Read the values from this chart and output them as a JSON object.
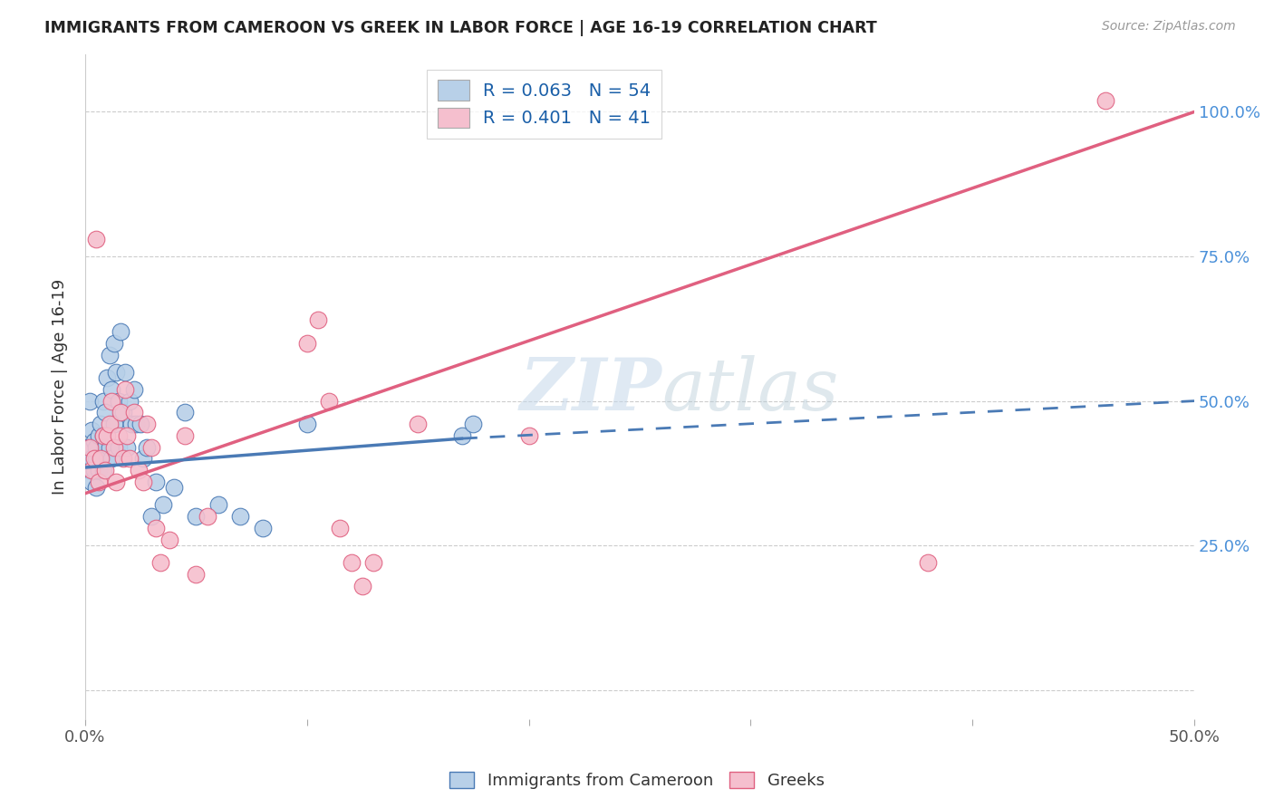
{
  "title": "IMMIGRANTS FROM CAMEROON VS GREEK IN LABOR FORCE | AGE 16-19 CORRELATION CHART",
  "source": "Source: ZipAtlas.com",
  "ylabel": "In Labor Force | Age 16-19",
  "xlim": [
    0.0,
    0.5
  ],
  "ylim": [
    -0.05,
    1.1
  ],
  "yticks": [
    0.0,
    0.25,
    0.5,
    0.75,
    1.0
  ],
  "ytick_labels": [
    "",
    "25.0%",
    "50.0%",
    "75.0%",
    "100.0%"
  ],
  "xticks": [
    0.0,
    0.1,
    0.2,
    0.3,
    0.4,
    0.5
  ],
  "xtick_labels": [
    "0.0%",
    "",
    "",
    "",
    "",
    "50.0%"
  ],
  "cameroon_color": "#b8d0e8",
  "greek_color": "#f5bfce",
  "cameroon_line_color": "#4a7ab5",
  "greek_line_color": "#e06080",
  "watermark_zip": "ZIP",
  "watermark_atlas": "atlas",
  "greek_line_x0": 0.0,
  "greek_line_y0": 0.34,
  "greek_line_x1": 0.5,
  "greek_line_y1": 1.0,
  "cam_line_solid_x0": 0.0,
  "cam_line_solid_y0": 0.385,
  "cam_line_solid_x1": 0.17,
  "cam_line_solid_y1": 0.435,
  "cam_line_dash_x0": 0.17,
  "cam_line_dash_y0": 0.435,
  "cam_line_dash_x1": 0.5,
  "cam_line_dash_y1": 0.5,
  "cameroon_x": [
    0.001,
    0.002,
    0.002,
    0.003,
    0.003,
    0.003,
    0.004,
    0.004,
    0.005,
    0.005,
    0.005,
    0.006,
    0.006,
    0.007,
    0.007,
    0.008,
    0.008,
    0.008,
    0.009,
    0.009,
    0.01,
    0.01,
    0.011,
    0.011,
    0.012,
    0.012,
    0.013,
    0.013,
    0.014,
    0.015,
    0.015,
    0.016,
    0.017,
    0.018,
    0.019,
    0.02,
    0.021,
    0.022,
    0.023,
    0.025,
    0.026,
    0.028,
    0.03,
    0.032,
    0.035,
    0.04,
    0.045,
    0.05,
    0.06,
    0.07,
    0.08,
    0.1,
    0.17,
    0.175
  ],
  "cameroon_y": [
    0.42,
    0.5,
    0.38,
    0.45,
    0.4,
    0.36,
    0.43,
    0.38,
    0.42,
    0.4,
    0.35,
    0.44,
    0.38,
    0.46,
    0.4,
    0.5,
    0.44,
    0.38,
    0.48,
    0.42,
    0.54,
    0.4,
    0.58,
    0.42,
    0.52,
    0.4,
    0.6,
    0.46,
    0.55,
    0.5,
    0.42,
    0.62,
    0.48,
    0.55,
    0.42,
    0.5,
    0.46,
    0.52,
    0.46,
    0.46,
    0.4,
    0.42,
    0.3,
    0.36,
    0.32,
    0.35,
    0.48,
    0.3,
    0.32,
    0.3,
    0.28,
    0.46,
    0.44,
    0.46
  ],
  "greek_x": [
    0.002,
    0.003,
    0.004,
    0.005,
    0.006,
    0.007,
    0.008,
    0.009,
    0.01,
    0.011,
    0.012,
    0.013,
    0.014,
    0.015,
    0.016,
    0.017,
    0.018,
    0.019,
    0.02,
    0.022,
    0.024,
    0.026,
    0.028,
    0.03,
    0.032,
    0.034,
    0.038,
    0.045,
    0.05,
    0.055,
    0.1,
    0.105,
    0.11,
    0.115,
    0.12,
    0.125,
    0.13,
    0.15,
    0.2,
    0.38,
    0.46
  ],
  "greek_y": [
    0.42,
    0.38,
    0.4,
    0.78,
    0.36,
    0.4,
    0.44,
    0.38,
    0.44,
    0.46,
    0.5,
    0.42,
    0.36,
    0.44,
    0.48,
    0.4,
    0.52,
    0.44,
    0.4,
    0.48,
    0.38,
    0.36,
    0.46,
    0.42,
    0.28,
    0.22,
    0.26,
    0.44,
    0.2,
    0.3,
    0.6,
    0.64,
    0.5,
    0.28,
    0.22,
    0.18,
    0.22,
    0.46,
    0.44,
    0.22,
    1.02
  ]
}
